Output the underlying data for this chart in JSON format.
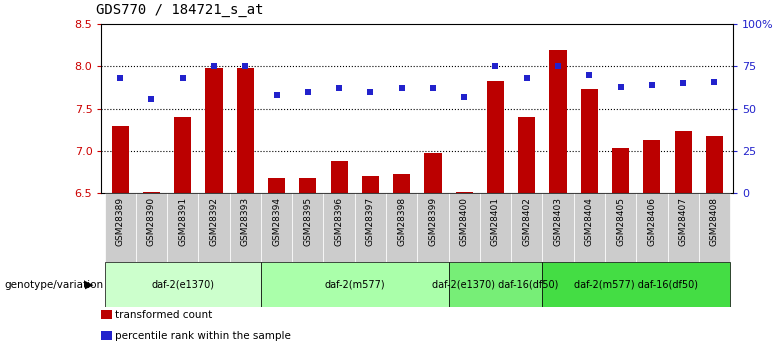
{
  "title": "GDS770 / 184721_s_at",
  "samples": [
    "GSM28389",
    "GSM28390",
    "GSM28391",
    "GSM28392",
    "GSM28393",
    "GSM28394",
    "GSM28395",
    "GSM28396",
    "GSM28397",
    "GSM28398",
    "GSM28399",
    "GSM28400",
    "GSM28401",
    "GSM28402",
    "GSM28403",
    "GSM28404",
    "GSM28405",
    "GSM28406",
    "GSM28407",
    "GSM28408"
  ],
  "transformed_count": [
    7.3,
    6.51,
    7.4,
    7.98,
    7.98,
    6.68,
    6.68,
    6.88,
    6.7,
    6.73,
    6.98,
    6.51,
    7.83,
    7.4,
    8.2,
    7.73,
    7.03,
    7.13,
    7.23,
    7.18
  ],
  "percentile_rank": [
    68,
    56,
    68,
    75,
    75,
    58,
    60,
    62,
    60,
    62,
    62,
    57,
    75,
    68,
    75,
    70,
    63,
    64,
    65,
    66
  ],
  "ylim_left": [
    6.5,
    8.5
  ],
  "ylim_right": [
    0,
    100
  ],
  "yticks_left": [
    6.5,
    7.0,
    7.5,
    8.0,
    8.5
  ],
  "yticks_right": [
    0,
    25,
    50,
    75,
    100
  ],
  "ytick_right_labels": [
    "0",
    "25",
    "50",
    "75",
    "100%"
  ],
  "bar_color": "#bb0000",
  "dot_color": "#2222cc",
  "groups": [
    {
      "label": "daf-2(e1370)",
      "start": 0,
      "end": 5,
      "color": "#ccffcc"
    },
    {
      "label": "daf-2(m577)",
      "start": 5,
      "end": 11,
      "color": "#aaffaa"
    },
    {
      "label": "daf-2(e1370) daf-16(df50)",
      "start": 11,
      "end": 14,
      "color": "#77ee77"
    },
    {
      "label": "daf-2(m577) daf-16(df50)",
      "start": 14,
      "end": 20,
      "color": "#44dd44"
    }
  ],
  "tick_label_color_left": "#cc0000",
  "tick_label_color_right": "#2222cc",
  "xlabel_group": "genotype/variation",
  "legend_items": [
    {
      "color": "#bb0000",
      "label": "transformed count"
    },
    {
      "color": "#2222cc",
      "label": "percentile rank within the sample"
    }
  ],
  "cell_bg": "#cccccc"
}
